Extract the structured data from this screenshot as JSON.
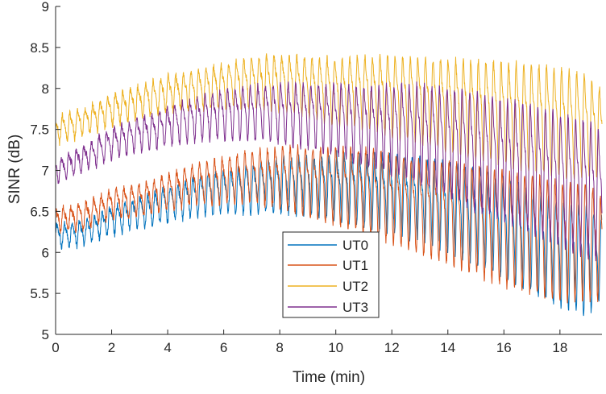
{
  "chart_data": {
    "type": "line",
    "title": "",
    "xlabel": "Time (min)",
    "ylabel": "SINR (dB)",
    "xlim": [
      0,
      19.5
    ],
    "ylim": [
      5,
      9
    ],
    "xticks": [
      0,
      2,
      4,
      6,
      8,
      10,
      12,
      14,
      16,
      18
    ],
    "yticks": [
      5,
      5.5,
      6,
      6.5,
      7,
      7.5,
      8,
      8.5,
      9
    ],
    "legend_position": "bottom-center",
    "series": [
      {
        "name": "UT0",
        "color": "#0072BD",
        "x": [
          0,
          1,
          2,
          3,
          4,
          5,
          6,
          7,
          8,
          9,
          10,
          11,
          12,
          13,
          14,
          15,
          16,
          17,
          18,
          19,
          19.5
        ],
        "mean": [
          6.2,
          6.25,
          6.4,
          6.5,
          6.6,
          6.7,
          6.75,
          6.8,
          6.85,
          6.85,
          6.85,
          6.8,
          6.75,
          6.7,
          6.6,
          6.5,
          6.35,
          6.2,
          6.05,
          5.95,
          6.0
        ],
        "amplitude": [
          0.12,
          0.12,
          0.14,
          0.15,
          0.17,
          0.2,
          0.22,
          0.24,
          0.27,
          0.3,
          0.33,
          0.36,
          0.4,
          0.42,
          0.45,
          0.48,
          0.5,
          0.52,
          0.53,
          0.55,
          0.4
        ]
      },
      {
        "name": "UT1",
        "color": "#D95319",
        "x": [
          0,
          1,
          2,
          3,
          4,
          5,
          6,
          7,
          8,
          9,
          10,
          11,
          12,
          13,
          14,
          15,
          16,
          17,
          18,
          19,
          19.5
        ],
        "mean": [
          6.4,
          6.45,
          6.6,
          6.65,
          6.75,
          6.85,
          6.9,
          6.95,
          6.95,
          6.9,
          6.85,
          6.8,
          6.7,
          6.6,
          6.55,
          6.45,
          6.35,
          6.3,
          6.2,
          6.2,
          6.1
        ],
        "amplitude": [
          0.12,
          0.13,
          0.14,
          0.16,
          0.18,
          0.2,
          0.23,
          0.26,
          0.3,
          0.35,
          0.38,
          0.42,
          0.45,
          0.48,
          0.52,
          0.55,
          0.58,
          0.6,
          0.6,
          0.6,
          0.5
        ]
      },
      {
        "name": "UT2",
        "color": "#EDB120",
        "x": [
          0,
          1,
          2,
          3,
          4,
          5,
          6,
          7,
          8,
          9,
          10,
          11,
          12,
          13,
          14,
          15,
          16,
          17,
          18,
          19,
          19.5
        ],
        "mean": [
          7.5,
          7.6,
          7.75,
          7.85,
          7.95,
          8.0,
          8.05,
          8.1,
          8.1,
          8.05,
          8.0,
          8.0,
          7.95,
          7.9,
          7.85,
          7.8,
          7.75,
          7.7,
          7.65,
          7.6,
          7.5
        ],
        "amplitude": [
          0.13,
          0.14,
          0.15,
          0.16,
          0.18,
          0.2,
          0.22,
          0.25,
          0.28,
          0.3,
          0.33,
          0.36,
          0.4,
          0.43,
          0.46,
          0.5,
          0.52,
          0.55,
          0.55,
          0.5,
          0.45
        ]
      },
      {
        "name": "UT3",
        "color": "#7E2F8E",
        "x": [
          0,
          1,
          2,
          3,
          4,
          5,
          6,
          7,
          8,
          9,
          10,
          11,
          12,
          13,
          14,
          15,
          16,
          17,
          18,
          19,
          19.5
        ],
        "mean": [
          7.0,
          7.15,
          7.35,
          7.45,
          7.55,
          7.65,
          7.7,
          7.72,
          7.72,
          7.7,
          7.65,
          7.6,
          7.55,
          7.5,
          7.4,
          7.3,
          7.2,
          7.1,
          6.95,
          6.85,
          6.75
        ],
        "amplitude": [
          0.12,
          0.13,
          0.15,
          0.17,
          0.19,
          0.22,
          0.25,
          0.28,
          0.3,
          0.33,
          0.36,
          0.4,
          0.45,
          0.5,
          0.55,
          0.6,
          0.62,
          0.65,
          0.68,
          0.7,
          0.65
        ]
      }
    ],
    "oscillation_period_min": 0.27
  }
}
